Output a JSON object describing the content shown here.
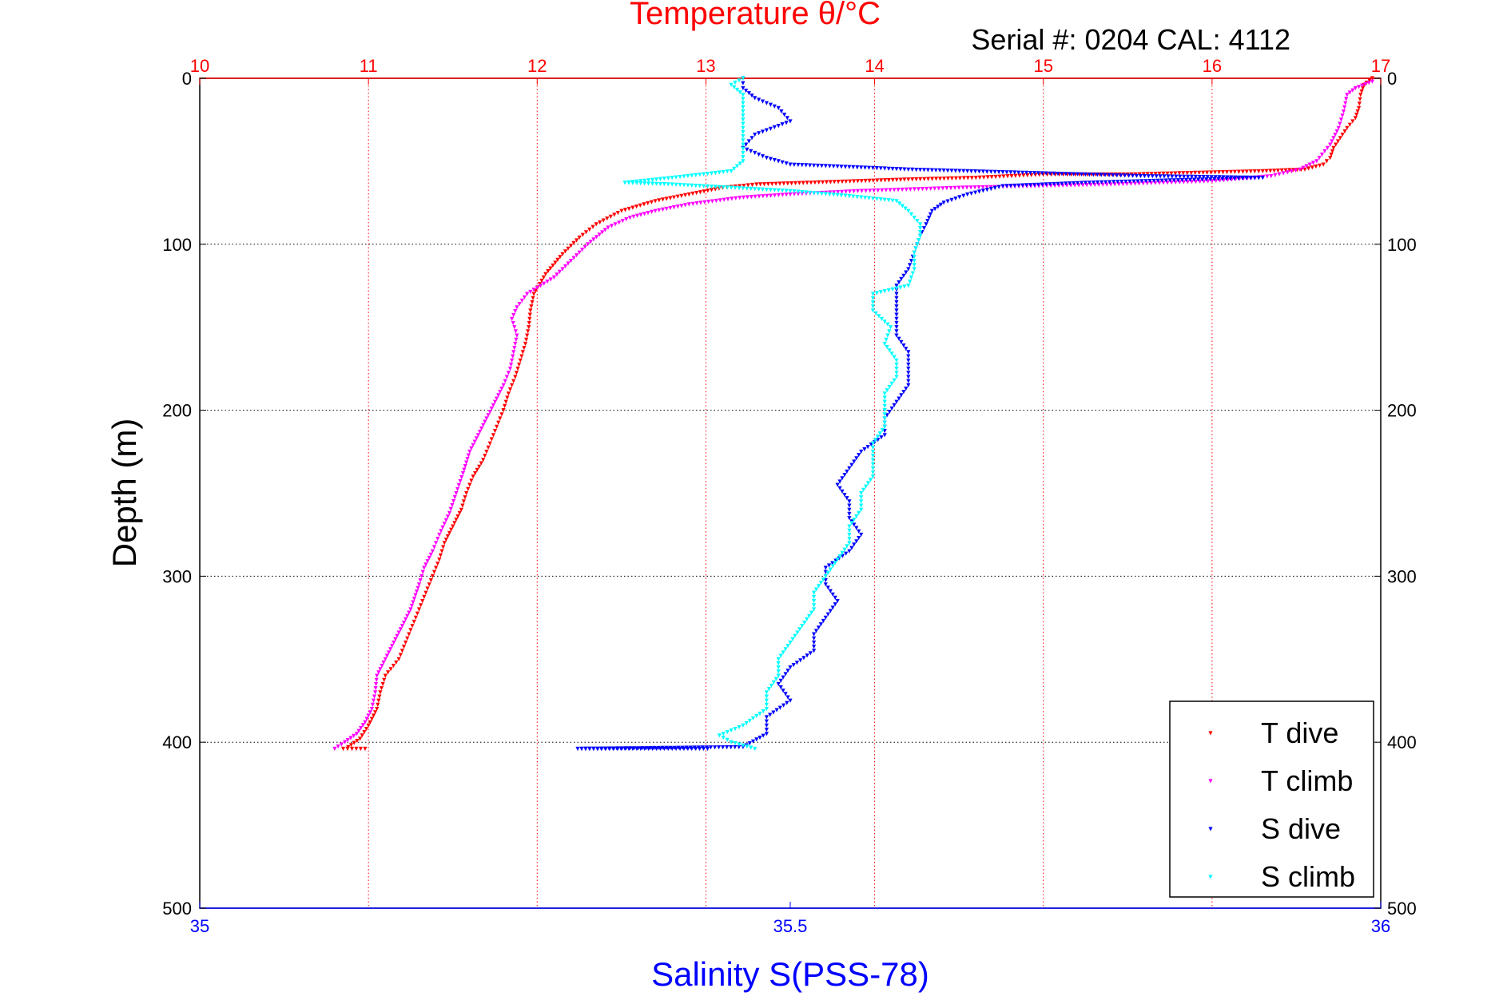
{
  "chart_data": {
    "type": "scatter",
    "serial_text": "Serial #: 0204  CAL: 4112",
    "y_axis": {
      "label": "Depth (m)",
      "range": [
        0,
        500
      ],
      "ticks": [
        0,
        100,
        200,
        300,
        400,
        500
      ],
      "inverted": true,
      "grid": true
    },
    "top_axis": {
      "label": "Temperature θ/°C",
      "range": [
        10,
        17
      ],
      "ticks": [
        10,
        11,
        12,
        13,
        14,
        15,
        16,
        17
      ],
      "color": "#ff0000",
      "grid": true
    },
    "bottom_axis": {
      "label": "Salinity S(PSS-78)",
      "range": [
        35,
        36
      ],
      "ticks": [
        35,
        35.5,
        36
      ],
      "color": "#0000ff"
    },
    "legend": {
      "placement": "bottom-right",
      "entries": [
        "T dive",
        "T climb",
        "S dive",
        "S climb"
      ]
    },
    "series": [
      {
        "name": "T dive",
        "axis": "temperature",
        "color": "#ff0000",
        "points": [
          [
            16.95,
            0
          ],
          [
            16.9,
            4
          ],
          [
            16.88,
            10
          ],
          [
            16.87,
            18
          ],
          [
            16.85,
            24
          ],
          [
            16.8,
            30
          ],
          [
            16.76,
            36
          ],
          [
            16.72,
            42
          ],
          [
            16.7,
            48
          ],
          [
            16.66,
            52
          ],
          [
            16.55,
            55
          ],
          [
            16.3,
            56
          ],
          [
            15.9,
            57
          ],
          [
            15.5,
            58
          ],
          [
            15.0,
            58
          ],
          [
            14.6,
            60
          ],
          [
            14.2,
            61
          ],
          [
            13.9,
            62
          ],
          [
            13.6,
            63
          ],
          [
            13.3,
            64
          ],
          [
            13.1,
            66
          ],
          [
            12.9,
            70
          ],
          [
            12.7,
            74
          ],
          [
            12.5,
            80
          ],
          [
            12.35,
            88
          ],
          [
            12.25,
            96
          ],
          [
            12.15,
            106
          ],
          [
            12.05,
            118
          ],
          [
            11.98,
            130
          ],
          [
            11.96,
            140
          ],
          [
            11.95,
            150
          ],
          [
            11.93,
            160
          ],
          [
            11.9,
            170
          ],
          [
            11.87,
            180
          ],
          [
            11.83,
            190
          ],
          [
            11.8,
            200
          ],
          [
            11.76,
            210
          ],
          [
            11.72,
            220
          ],
          [
            11.68,
            230
          ],
          [
            11.62,
            240
          ],
          [
            11.58,
            250
          ],
          [
            11.55,
            260
          ],
          [
            11.5,
            270
          ],
          [
            11.45,
            280
          ],
          [
            11.42,
            290
          ],
          [
            11.38,
            300
          ],
          [
            11.34,
            310
          ],
          [
            11.3,
            320
          ],
          [
            11.26,
            330
          ],
          [
            11.22,
            340
          ],
          [
            11.18,
            350
          ],
          [
            11.1,
            360
          ],
          [
            11.07,
            370
          ],
          [
            11.05,
            380
          ],
          [
            11.0,
            390
          ],
          [
            10.95,
            398
          ],
          [
            10.88,
            403
          ],
          [
            10.85,
            404
          ],
          [
            10.98,
            404
          ]
        ]
      },
      {
        "name": "T climb",
        "axis": "temperature",
        "color": "#ff00ff",
        "points": [
          [
            10.8,
            404
          ],
          [
            10.86,
            400
          ],
          [
            10.93,
            395
          ],
          [
            10.98,
            388
          ],
          [
            11.02,
            380
          ],
          [
            11.04,
            370
          ],
          [
            11.05,
            360
          ],
          [
            11.1,
            350
          ],
          [
            11.15,
            340
          ],
          [
            11.2,
            330
          ],
          [
            11.25,
            320
          ],
          [
            11.3,
            305
          ],
          [
            11.33,
            295
          ],
          [
            11.38,
            285
          ],
          [
            11.42,
            275
          ],
          [
            11.48,
            262
          ],
          [
            11.52,
            250
          ],
          [
            11.56,
            238
          ],
          [
            11.6,
            225
          ],
          [
            11.65,
            215
          ],
          [
            11.7,
            205
          ],
          [
            11.75,
            195
          ],
          [
            11.8,
            185
          ],
          [
            11.84,
            175
          ],
          [
            11.86,
            165
          ],
          [
            11.88,
            155
          ],
          [
            11.85,
            145
          ],
          [
            11.88,
            138
          ],
          [
            11.94,
            130
          ],
          [
            12.1,
            120
          ],
          [
            12.2,
            110
          ],
          [
            12.3,
            100
          ],
          [
            12.42,
            90
          ],
          [
            12.55,
            84
          ],
          [
            12.7,
            80
          ],
          [
            12.9,
            76
          ],
          [
            13.2,
            72
          ],
          [
            13.5,
            70
          ],
          [
            13.9,
            68
          ],
          [
            14.5,
            66
          ],
          [
            15.4,
            64
          ],
          [
            16.0,
            62
          ],
          [
            16.35,
            59
          ],
          [
            16.52,
            55
          ],
          [
            16.62,
            50
          ],
          [
            16.7,
            40
          ],
          [
            16.75,
            30
          ],
          [
            16.78,
            20
          ],
          [
            16.8,
            10
          ],
          [
            16.85,
            6
          ],
          [
            16.95,
            2
          ]
        ]
      },
      {
        "name": "S dive",
        "axis": "salinity",
        "color": "#0000ff",
        "points": [
          [
            35.46,
            0
          ],
          [
            35.46,
            6
          ],
          [
            35.47,
            12
          ],
          [
            35.49,
            18
          ],
          [
            35.5,
            26
          ],
          [
            35.47,
            34
          ],
          [
            35.46,
            42
          ],
          [
            35.48,
            48
          ],
          [
            35.5,
            52
          ],
          [
            35.6,
            55
          ],
          [
            35.7,
            57
          ],
          [
            35.8,
            59
          ],
          [
            35.9,
            60
          ],
          [
            35.75,
            63
          ],
          [
            35.68,
            65
          ],
          [
            35.65,
            70
          ],
          [
            35.63,
            75
          ],
          [
            35.62,
            80
          ],
          [
            35.615,
            88
          ],
          [
            35.61,
            95
          ],
          [
            35.605,
            105
          ],
          [
            35.6,
            115
          ],
          [
            35.59,
            125
          ],
          [
            35.59,
            140
          ],
          [
            35.59,
            155
          ],
          [
            35.6,
            165
          ],
          [
            35.6,
            175
          ],
          [
            35.6,
            185
          ],
          [
            35.59,
            195
          ],
          [
            35.58,
            205
          ],
          [
            35.58,
            215
          ],
          [
            35.56,
            225
          ],
          [
            35.55,
            235
          ],
          [
            35.54,
            245
          ],
          [
            35.55,
            255
          ],
          [
            35.55,
            265
          ],
          [
            35.56,
            275
          ],
          [
            35.55,
            285
          ],
          [
            35.53,
            295
          ],
          [
            35.53,
            305
          ],
          [
            35.54,
            315
          ],
          [
            35.53,
            325
          ],
          [
            35.52,
            335
          ],
          [
            35.52,
            345
          ],
          [
            35.5,
            355
          ],
          [
            35.49,
            365
          ],
          [
            35.5,
            375
          ],
          [
            35.48,
            385
          ],
          [
            35.48,
            395
          ],
          [
            35.46,
            403
          ],
          [
            35.32,
            404
          ],
          [
            35.39,
            404
          ],
          [
            35.43,
            404
          ]
        ]
      },
      {
        "name": "S climb",
        "axis": "salinity",
        "color": "#00ffff",
        "points": [
          [
            35.47,
            404
          ],
          [
            35.45,
            400
          ],
          [
            35.44,
            396
          ],
          [
            35.46,
            390
          ],
          [
            35.48,
            380
          ],
          [
            35.48,
            370
          ],
          [
            35.49,
            360
          ],
          [
            35.49,
            350
          ],
          [
            35.5,
            340
          ],
          [
            35.51,
            330
          ],
          [
            35.52,
            320
          ],
          [
            35.52,
            310
          ],
          [
            35.53,
            300
          ],
          [
            35.54,
            290
          ],
          [
            35.55,
            280
          ],
          [
            35.55,
            270
          ],
          [
            35.56,
            260
          ],
          [
            35.56,
            250
          ],
          [
            35.57,
            240
          ],
          [
            35.57,
            230
          ],
          [
            35.57,
            220
          ],
          [
            35.58,
            210
          ],
          [
            35.58,
            200
          ],
          [
            35.58,
            190
          ],
          [
            35.59,
            180
          ],
          [
            35.59,
            170
          ],
          [
            35.58,
            160
          ],
          [
            35.585,
            150
          ],
          [
            35.57,
            140
          ],
          [
            35.57,
            130
          ],
          [
            35.6,
            125
          ],
          [
            35.605,
            115
          ],
          [
            35.605,
            105
          ],
          [
            35.61,
            95
          ],
          [
            35.61,
            88
          ],
          [
            35.6,
            80
          ],
          [
            35.59,
            74
          ],
          [
            35.55,
            71
          ],
          [
            35.5,
            68
          ],
          [
            35.45,
            66
          ],
          [
            35.4,
            64
          ],
          [
            35.36,
            63
          ],
          [
            35.4,
            60
          ],
          [
            35.45,
            56
          ],
          [
            35.46,
            50
          ],
          [
            35.46,
            40
          ],
          [
            35.46,
            30
          ],
          [
            35.46,
            20
          ],
          [
            35.46,
            10
          ],
          [
            35.45,
            4
          ],
          [
            35.46,
            0
          ]
        ]
      }
    ]
  }
}
